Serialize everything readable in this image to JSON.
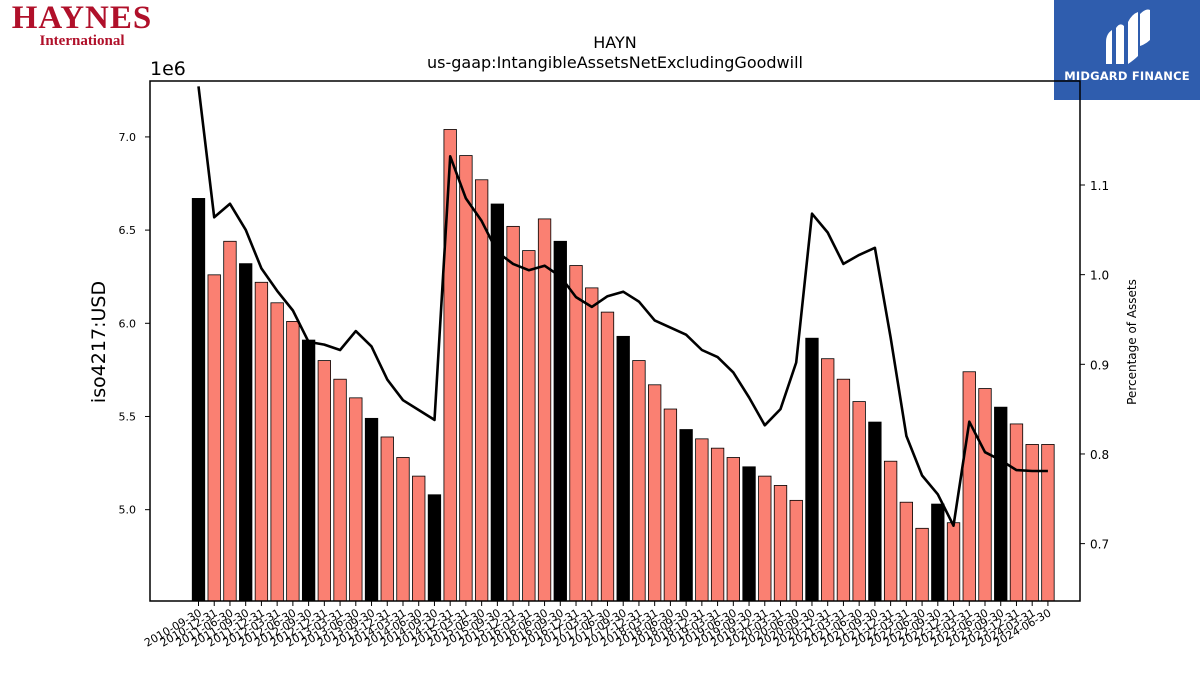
{
  "logos": {
    "left_brand": "HAYNES",
    "left_sub": "International",
    "right_brand": "MIDGARD FINANCE"
  },
  "colors": {
    "bar_normal": "#fa8072",
    "bar_year_end": "#000000",
    "line": "#000000",
    "midgard_bg": "#2f5dae",
    "haynes_red": "#b0102a"
  },
  "chart_data": {
    "type": "bar",
    "title_line1": "HAYN",
    "title_line2": "us-gaap:IntangibleAssetsNetExcludingGoodwill",
    "ylabel_left": "iso4217:USD",
    "ylabel_right": "Percentage of Assets",
    "left_offset_label": "1e6",
    "left_ylim": [
      4.51,
      7.3
    ],
    "left_ticks": [
      "5.0",
      "5.5",
      "6.0",
      "6.5",
      "7.0"
    ],
    "left_tick_values": [
      5.0,
      5.5,
      6.0,
      6.5,
      7.0
    ],
    "right_ylim": [
      0.636,
      1.216
    ],
    "right_ticks": [
      "0.7",
      "0.8",
      "0.9",
      "1.0",
      "1.1"
    ],
    "right_tick_values": [
      0.7,
      0.8,
      0.9,
      1.0,
      1.1
    ],
    "categories": [
      "2010-09-30",
      "2010-12-31",
      "2011-06-30",
      "2011-09-30",
      "2011-12-31",
      "2012-03-31",
      "2012-06-30",
      "2012-09-30",
      "2012-12-31",
      "2013-03-31",
      "2013-06-30",
      "2013-09-30",
      "2013-12-31",
      "2014-03-31",
      "2014-06-30",
      "2014-09-30",
      "2014-12-31",
      "2015-03-31",
      "2015-06-30",
      "2015-09-30",
      "2015-12-31",
      "2016-03-31",
      "2016-06-30",
      "2016-09-30",
      "2016-12-31",
      "2017-03-31",
      "2017-06-30",
      "2017-09-30",
      "2017-12-31",
      "2018-03-31",
      "2018-06-30",
      "2018-09-30",
      "2018-12-31",
      "2019-03-31",
      "2019-06-30",
      "2019-09-30",
      "2019-12-31",
      "2020-03-31",
      "2020-06-30",
      "2020-09-30",
      "2020-12-31",
      "2021-03-31",
      "2021-06-30",
      "2021-09-30",
      "2021-12-31",
      "2022-03-31",
      "2022-06-30",
      "2022-09-30",
      "2022-12-31",
      "2023-03-31",
      "2023-06-30",
      "2023-09-30",
      "2023-12-31",
      "2024-03-31",
      "2024-06-30"
    ],
    "series": [
      {
        "name": "",
        "values": [
          6.67,
          6.26,
          6.44,
          6.32,
          6.22,
          6.11,
          6.01,
          5.91,
          5.8,
          5.7,
          5.6,
          5.49,
          5.39,
          5.28,
          5.18,
          5.08,
          7.04,
          6.9,
          6.77,
          6.64,
          6.52,
          6.39,
          6.56,
          6.44,
          6.31,
          6.19,
          6.06,
          5.93,
          5.8,
          5.67,
          5.54,
          5.43,
          5.38,
          5.33,
          5.28,
          5.23,
          5.18,
          5.13,
          5.05,
          5.92,
          5.81,
          5.7,
          5.58,
          5.47,
          5.26,
          5.04,
          4.9,
          5.03,
          4.93,
          5.74,
          5.65,
          5.55,
          5.46,
          5.35,
          5.35
        ],
        "year_end": [
          true,
          false,
          false,
          true,
          false,
          false,
          false,
          true,
          false,
          false,
          false,
          true,
          false,
          false,
          false,
          true,
          false,
          false,
          false,
          true,
          false,
          false,
          false,
          true,
          false,
          false,
          false,
          true,
          false,
          false,
          false,
          true,
          false,
          false,
          false,
          true,
          false,
          false,
          false,
          true,
          false,
          false,
          false,
          true,
          false,
          false,
          false,
          true,
          false,
          false,
          false,
          true,
          false,
          false,
          false
        ]
      },
      {
        "name": "Percentage of Assets",
        "values": [
          1.21,
          1.064,
          1.079,
          1.05,
          1.007,
          0.982,
          0.96,
          0.925,
          0.922,
          0.916,
          0.937,
          0.92,
          0.883,
          0.86,
          0.849,
          0.838,
          1.132,
          1.085,
          1.06,
          1.025,
          1.012,
          1.005,
          1.01,
          0.998,
          0.975,
          0.964,
          0.976,
          0.981,
          0.97,
          0.949,
          0.941,
          0.933,
          0.916,
          0.908,
          0.891,
          0.863,
          0.832,
          0.85,
          0.902,
          1.068,
          1.047,
          1.012,
          1.022,
          1.03,
          0.93,
          0.82,
          0.776,
          0.755,
          0.72,
          0.836,
          0.802,
          0.793,
          0.782,
          0.781,
          0.781
        ]
      }
    ],
    "grid": false,
    "legend": "none"
  }
}
